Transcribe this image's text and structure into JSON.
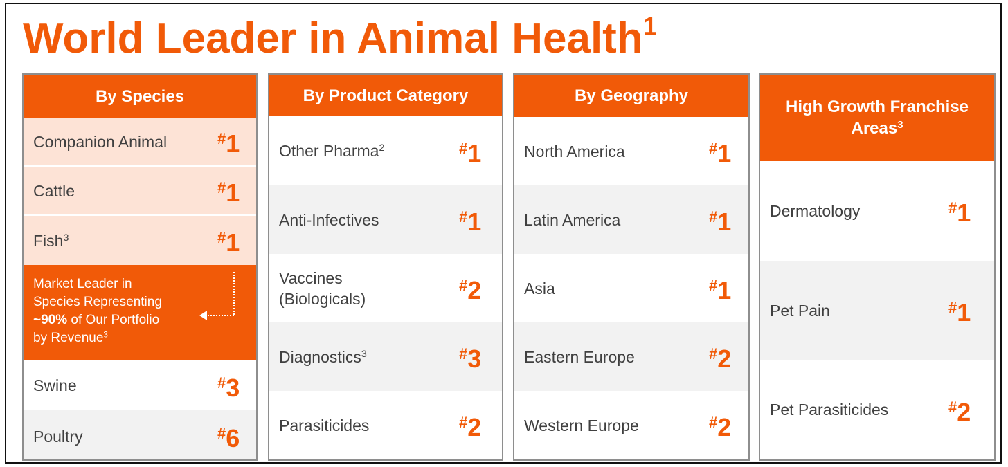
{
  "title": {
    "text": "World Leader in Animal Health",
    "sup": "1"
  },
  "species": {
    "header": "By Species",
    "top_rows": [
      {
        "label": "Companion Animal",
        "sup": "",
        "rank": "1"
      },
      {
        "label": "Cattle",
        "sup": "",
        "rank": "1"
      },
      {
        "label": "Fish",
        "sup": "3",
        "rank": "1"
      }
    ],
    "callout": {
      "line1": "Market Leader in",
      "line2": "Species Representing",
      "bold": "~90%",
      "line3_rest": " of Our Portfolio",
      "line4": "by Revenue",
      "line4_sup": "3"
    },
    "bottom_rows": [
      {
        "label": "Swine",
        "rank": "3"
      },
      {
        "label": "Poultry",
        "rank": "6"
      }
    ]
  },
  "product": {
    "header": "By Product Category",
    "rows": [
      {
        "label": "Other Pharma",
        "sup": "2",
        "rank": "1"
      },
      {
        "label": "Anti-Infectives",
        "sup": "",
        "rank": "1"
      },
      {
        "label_line1": "Vaccines",
        "label_line2": "(Biologicals)",
        "rank": "2"
      },
      {
        "label": "Diagnostics",
        "sup": "3",
        "rank": "3"
      },
      {
        "label": "Parasiticides",
        "sup": "",
        "rank": "2"
      }
    ]
  },
  "geography": {
    "header": "By Geography",
    "rows": [
      {
        "label": "North America",
        "rank": "1"
      },
      {
        "label": "Latin America",
        "rank": "1"
      },
      {
        "label": "Asia",
        "rank": "1"
      },
      {
        "label": "Eastern Europe",
        "rank": "2"
      },
      {
        "label": "Western Europe",
        "rank": "2"
      }
    ]
  },
  "franchise": {
    "header_line1": "High Growth Franchise",
    "header_line2": "Areas",
    "header_sup": "3",
    "rows": [
      {
        "label": "Dermatology",
        "rank": "1"
      },
      {
        "label": "Pet Pain",
        "rank": "1"
      },
      {
        "label": "Pet Parasiticides",
        "rank": "2"
      }
    ]
  },
  "rank_prefix": "#",
  "colors": {
    "accent": "#f15a08",
    "peach": "#fde3d6",
    "gray_row": "#f2f2f2",
    "border": "#8e8e8e"
  }
}
